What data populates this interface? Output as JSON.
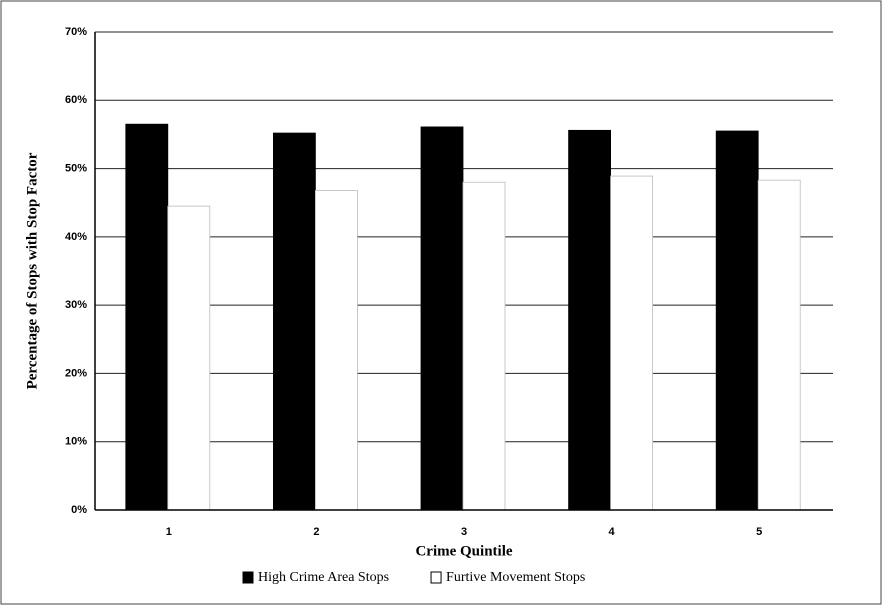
{
  "chart_data": {
    "type": "bar",
    "x_label": "Crime Quintile",
    "y_label": "Percentage of Stops with Stop Factor",
    "categories": [
      "1",
      "2",
      "3",
      "4",
      "5"
    ],
    "series": [
      {
        "name": "High Crime Area Stops",
        "color": "#000000",
        "values": [
          56.5,
          55.2,
          56.1,
          55.6,
          55.5
        ]
      },
      {
        "name": "Furtive Movement Stops",
        "color": "#ffffff",
        "values": [
          44.5,
          46.8,
          48.0,
          48.9,
          48.3
        ]
      }
    ],
    "ylim": [
      0,
      70
    ],
    "yticks": [
      {
        "value": 0,
        "label": "0%"
      },
      {
        "value": 10,
        "label": "10%"
      },
      {
        "value": 20,
        "label": "20%"
      },
      {
        "value": 30,
        "label": "30%"
      },
      {
        "value": 40,
        "label": "40%"
      },
      {
        "value": 50,
        "label": "50%"
      },
      {
        "value": 60,
        "label": "60%"
      },
      {
        "value": 70,
        "label": "70%"
      }
    ],
    "grid": true
  }
}
